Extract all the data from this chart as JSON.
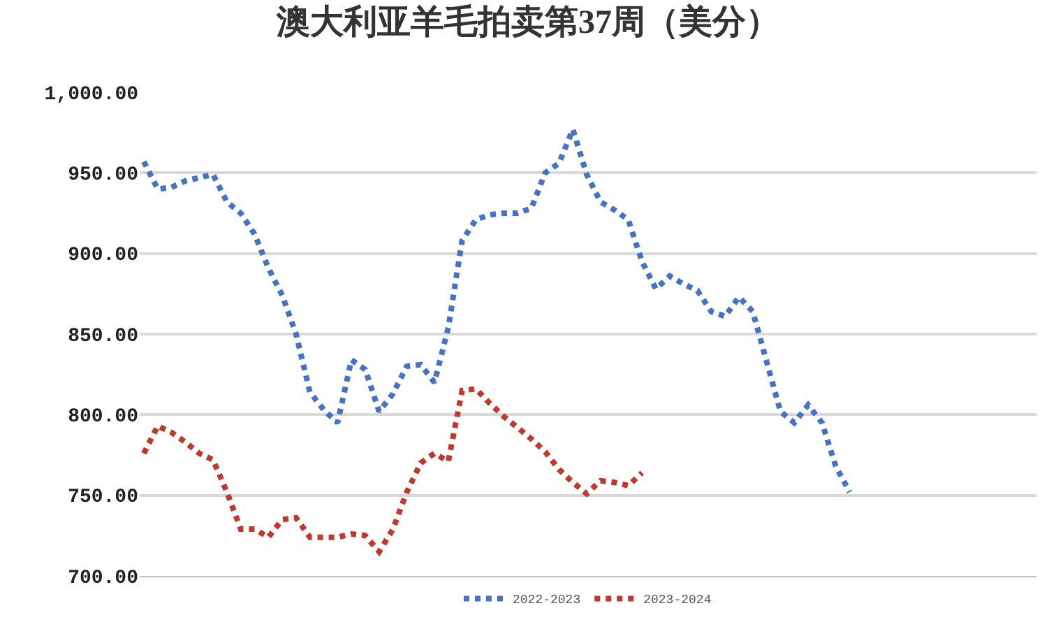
{
  "chart_data": {
    "type": "line",
    "title": "澳大利亚羊毛拍卖第37周（美分）",
    "categories": [
      null,
      null,
      null,
      null,
      null,
      null,
      null,
      null,
      null,
      null,
      null,
      null,
      null,
      null,
      null,
      null,
      null,
      null,
      null,
      null,
      null,
      null,
      null,
      null,
      null,
      null,
      null,
      null,
      null,
      null,
      null,
      null,
      null,
      null,
      null,
      null,
      null,
      null,
      null,
      null,
      null,
      null,
      null,
      null,
      null,
      null,
      null,
      null,
      null,
      null,
      null,
      null
    ],
    "series": [
      {
        "name": "2022-2023",
        "color": "#4472c4",
        "values": [
          957,
          940,
          941,
          945,
          947,
          949,
          932,
          925,
          912,
          891,
          874,
          850,
          814,
          803,
          795,
          834,
          828,
          802,
          813,
          830,
          831,
          820,
          854,
          908,
          921,
          924,
          925,
          925,
          928,
          950,
          956,
          977,
          949,
          932,
          927,
          921,
          895,
          878,
          886,
          881,
          877,
          864,
          861,
          873,
          864,
          833,
          802,
          795,
          806,
          795,
          768,
          752
        ]
      },
      {
        "name": "2023-2024",
        "color": "#c0392b",
        "values": [
          776,
          793,
          789,
          783,
          776,
          772,
          752,
          729,
          729,
          724,
          735,
          736,
          724,
          724,
          724,
          726,
          725,
          715,
          729,
          752,
          770,
          776,
          771,
          815,
          816,
          807,
          799,
          792,
          785,
          777,
          766,
          758,
          751,
          759,
          758,
          756,
          764,
          null,
          null,
          null,
          null,
          null,
          null,
          null,
          null,
          null,
          null,
          null,
          null,
          null,
          null,
          null
        ]
      }
    ],
    "ylim": [
      700,
      1000
    ],
    "yticks": [
      {
        "value": 700,
        "label": "700.00"
      },
      {
        "value": 750,
        "label": "750.00"
      },
      {
        "value": 800,
        "label": "800.00"
      },
      {
        "value": 850,
        "label": "850.00"
      },
      {
        "value": 900,
        "label": "900.00"
      },
      {
        "value": 950,
        "label": "950.00"
      },
      {
        "value": 1000,
        "label": "1,000.00"
      }
    ],
    "grid": "y",
    "legend": "bottom",
    "line_style": "dotted",
    "marker": "none",
    "tick_labels": "y"
  }
}
